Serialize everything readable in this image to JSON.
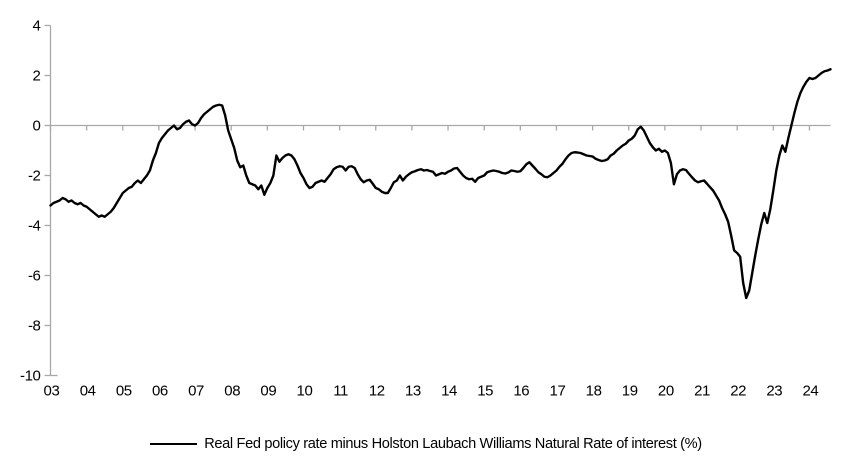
{
  "legend": {
    "label": "Real Fed policy rate minus Holston Laubach Williams Natural Rate of interest (%)"
  },
  "colors": {
    "line": "#000000",
    "axis": "#a8a8a8",
    "text": "#000000",
    "background": "#ffffff"
  },
  "chart_data": {
    "type": "line",
    "title": "",
    "xlabel": "",
    "ylabel": "",
    "legend_position": "bottom",
    "grid": false,
    "zero_axis_line": true,
    "ylim": [
      -10,
      4
    ],
    "y_ticks": [
      4,
      2,
      0,
      -2,
      -4,
      -6,
      -8,
      -10
    ],
    "y_tick_labels": [
      "4",
      "2",
      "0",
      "-2",
      "-4",
      "-6",
      "-8",
      "-10"
    ],
    "x_tick_years": [
      2003,
      2004,
      2005,
      2006,
      2007,
      2008,
      2009,
      2010,
      2011,
      2012,
      2013,
      2014,
      2015,
      2016,
      2017,
      2018,
      2019,
      2020,
      2021,
      2022,
      2023,
      2024
    ],
    "x_tick_labels": [
      "03",
      "04",
      "05",
      "06",
      "07",
      "08",
      "09",
      "10",
      "11",
      "12",
      "13",
      "14",
      "15",
      "16",
      "17",
      "18",
      "19",
      "20",
      "21",
      "22",
      "23",
      "24"
    ],
    "xlim": [
      2003.0,
      2024.75
    ],
    "series": [
      {
        "name": "Real Fed policy rate minus Holston Laubach Williams Natural Rate of interest (%)",
        "x_start_year": 2003,
        "x_step_months": 1,
        "values": [
          -3.2,
          -3.1,
          -3.05,
          -3.0,
          -2.9,
          -2.95,
          -3.05,
          -3.0,
          -3.1,
          -3.15,
          -3.1,
          -3.2,
          -3.25,
          -3.35,
          -3.45,
          -3.55,
          -3.65,
          -3.6,
          -3.65,
          -3.55,
          -3.45,
          -3.3,
          -3.1,
          -2.9,
          -2.7,
          -2.6,
          -2.5,
          -2.45,
          -2.3,
          -2.2,
          -2.3,
          -2.15,
          -2.0,
          -1.8,
          -1.4,
          -1.1,
          -0.7,
          -0.5,
          -0.35,
          -0.2,
          -0.1,
          0.0,
          -0.15,
          -0.1,
          0.05,
          0.15,
          0.2,
          0.05,
          0.0,
          0.1,
          0.3,
          0.45,
          0.55,
          0.65,
          0.75,
          0.8,
          0.83,
          0.8,
          0.4,
          -0.2,
          -0.55,
          -0.9,
          -1.4,
          -1.67,
          -1.6,
          -2.0,
          -2.3,
          -2.35,
          -2.4,
          -2.55,
          -2.4,
          -2.77,
          -2.5,
          -2.3,
          -2.0,
          -1.2,
          -1.45,
          -1.3,
          -1.2,
          -1.15,
          -1.2,
          -1.35,
          -1.6,
          -1.9,
          -2.1,
          -2.35,
          -2.5,
          -2.45,
          -2.3,
          -2.25,
          -2.2,
          -2.25,
          -2.1,
          -1.95,
          -1.75,
          -1.67,
          -1.63,
          -1.65,
          -1.8,
          -1.65,
          -1.63,
          -1.7,
          -1.95,
          -2.15,
          -2.27,
          -2.2,
          -2.17,
          -2.33,
          -2.5,
          -2.55,
          -2.65,
          -2.7,
          -2.7,
          -2.5,
          -2.27,
          -2.2,
          -2.0,
          -2.2,
          -2.05,
          -1.95,
          -1.87,
          -1.83,
          -1.78,
          -1.75,
          -1.8,
          -1.78,
          -1.82,
          -1.85,
          -2.0,
          -1.95,
          -1.9,
          -1.93,
          -1.85,
          -1.8,
          -1.72,
          -1.7,
          -1.85,
          -2.0,
          -2.1,
          -2.15,
          -2.13,
          -2.25,
          -2.1,
          -2.05,
          -2.0,
          -1.87,
          -1.83,
          -1.8,
          -1.82,
          -1.85,
          -1.9,
          -1.92,
          -1.88,
          -1.8,
          -1.82,
          -1.85,
          -1.83,
          -1.7,
          -1.55,
          -1.47,
          -1.6,
          -1.73,
          -1.87,
          -1.95,
          -2.05,
          -2.07,
          -2.0,
          -1.9,
          -1.8,
          -1.65,
          -1.53,
          -1.35,
          -1.2,
          -1.1,
          -1.07,
          -1.08,
          -1.1,
          -1.15,
          -1.2,
          -1.22,
          -1.24,
          -1.33,
          -1.38,
          -1.42,
          -1.4,
          -1.35,
          -1.2,
          -1.13,
          -1.0,
          -0.9,
          -0.8,
          -0.73,
          -0.6,
          -0.53,
          -0.4,
          -0.15,
          -0.05,
          -0.2,
          -0.45,
          -0.7,
          -0.87,
          -1.0,
          -0.93,
          -1.05,
          -1.0,
          -1.1,
          -1.5,
          -2.35,
          -1.95,
          -1.8,
          -1.75,
          -1.78,
          -1.93,
          -2.07,
          -2.2,
          -2.27,
          -2.23,
          -2.2,
          -2.33,
          -2.47,
          -2.6,
          -2.8,
          -3.0,
          -3.3,
          -3.55,
          -3.85,
          -4.4,
          -5.0,
          -5.1,
          -5.25,
          -6.3,
          -6.9,
          -6.6,
          -5.9,
          -5.2,
          -4.55,
          -3.95,
          -3.5,
          -3.9,
          -3.35,
          -2.6,
          -1.8,
          -1.2,
          -0.8,
          -1.05,
          -0.5,
          0.0,
          0.5,
          0.95,
          1.3,
          1.55,
          1.75,
          1.9,
          1.86,
          1.9,
          2.0,
          2.1,
          2.17,
          2.2,
          2.25
        ]
      }
    ]
  }
}
